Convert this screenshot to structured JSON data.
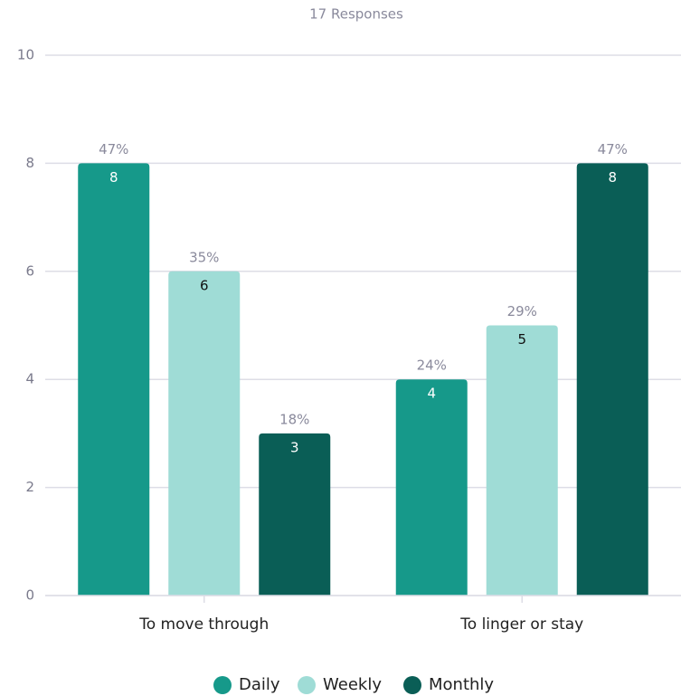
{
  "chart_data": {
    "type": "bar",
    "title": "17 Responses",
    "categories": [
      "To move through",
      "To linger or stay"
    ],
    "series": [
      {
        "name": "Daily",
        "color": "#16998a",
        "values": [
          8,
          4
        ],
        "share_labels": [
          "47%",
          "24%"
        ]
      },
      {
        "name": "Weekly",
        "color": "#9fdcd6",
        "values": [
          6,
          5
        ],
        "share_labels": [
          "35%",
          "29%"
        ]
      },
      {
        "name": "Monthly",
        "color": "#0a5e56",
        "values": [
          3,
          8
        ],
        "share_labels": [
          "18%",
          "47%"
        ]
      }
    ],
    "ylim": [
      0,
      10
    ],
    "yticks": [
      0,
      2,
      4,
      6,
      8,
      10
    ],
    "grid": true,
    "legend": "bottom"
  }
}
